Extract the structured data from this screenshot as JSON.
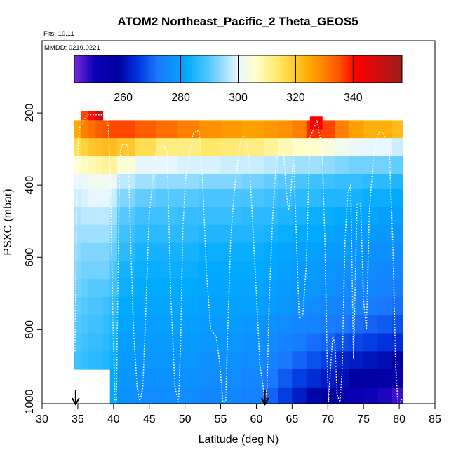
{
  "chart_data": {
    "type": "heatmap",
    "title": "ATOM2 Northeast_Pacific_2 Theta_GEOS5",
    "annotations": [
      "Flts: 10,11",
      "MMDD: 0219,0221"
    ],
    "xlabel": "Latitude (deg N)",
    "ylabel": "PSXC (mbar)",
    "xlim": [
      30,
      85
    ],
    "ylim": [
      1005,
      0
    ],
    "x_ticks": [
      "30",
      "35",
      "40",
      "45",
      "50",
      "55",
      "60",
      "65",
      "70",
      "75",
      "80",
      "85"
    ],
    "y_ticks": [
      "200",
      "400",
      "600",
      "800",
      "1000"
    ],
    "colorbar": {
      "range": [
        243,
        357
      ],
      "ticks": [
        "260",
        "280",
        "300",
        "320",
        "340"
      ],
      "tick_values": [
        260,
        280,
        300,
        320,
        340
      ],
      "stops": [
        {
          "v": 243,
          "c": "#7b2ad8"
        },
        {
          "v": 250,
          "c": "#0c00b8"
        },
        {
          "v": 258,
          "c": "#0000a0"
        },
        {
          "v": 265,
          "c": "#0033dd"
        },
        {
          "v": 272,
          "c": "#1a78ff"
        },
        {
          "v": 282,
          "c": "#00aaff"
        },
        {
          "v": 290,
          "c": "#55c8ff"
        },
        {
          "v": 300,
          "c": "#e8f7ff"
        },
        {
          "v": 306,
          "c": "#ffffcc"
        },
        {
          "v": 315,
          "c": "#ffe45a"
        },
        {
          "v": 325,
          "c": "#ffaa00"
        },
        {
          "v": 335,
          "c": "#ff5500"
        },
        {
          "v": 341,
          "c": "#ff0000"
        },
        {
          "v": 357,
          "c": "#9a1d1d"
        }
      ]
    },
    "theta_field": {
      "lat_bins": [
        [
          34.5,
          35.5
        ],
        [
          35.5,
          36.5
        ],
        [
          36.5,
          37.5
        ],
        [
          37.5,
          38.5
        ],
        [
          38.5,
          39.5
        ],
        [
          39.5,
          40.5
        ],
        [
          40.5,
          43
        ],
        [
          43,
          46
        ],
        [
          46,
          49
        ],
        [
          49,
          52
        ],
        [
          52,
          55
        ],
        [
          55,
          58
        ],
        [
          58,
          61
        ],
        [
          61,
          63
        ],
        [
          63,
          65
        ],
        [
          65,
          67
        ],
        [
          67,
          69
        ],
        [
          69,
          71
        ],
        [
          71,
          73
        ],
        [
          73,
          75
        ],
        [
          75,
          77
        ],
        [
          77,
          79
        ],
        [
          79,
          80.5
        ]
      ],
      "p_levels": [
        180,
        220,
        270,
        320,
        370,
        410,
        460,
        510,
        560,
        610,
        660,
        710,
        760,
        810,
        860,
        910,
        960,
        1005
      ],
      "theta": [
        [
          null,
          null,
          null,
          null,
          null,
          null,
          null,
          null,
          null,
          null,
          null,
          null,
          null,
          null,
          null,
          null,
          null,
          null,
          null,
          null,
          null,
          null,
          null
        ],
        [
          325,
          330,
          332,
          334,
          335,
          336,
          336,
          334,
          332,
          330,
          328,
          327,
          326,
          327,
          328,
          330,
          338,
          336,
          330,
          326,
          324,
          324,
          322
        ],
        [
          316,
          318,
          320,
          321,
          322,
          322,
          320,
          316,
          312,
          312,
          314,
          313,
          312,
          310,
          308,
          306,
          306,
          304,
          302,
          301,
          300,
          300,
          298
        ],
        [
          306,
          307,
          308,
          309,
          310,
          310,
          305,
          300,
          300,
          299,
          299,
          298,
          298,
          297,
          296,
          295,
          295,
          294,
          293,
          292,
          292,
          292,
          291
        ],
        [
          300,
          301,
          302,
          302,
          302,
          301,
          297,
          295,
          294,
          294,
          293,
          293,
          292,
          291,
          290,
          289,
          288,
          288,
          287,
          287,
          286,
          286,
          285
        ],
        [
          298,
          299,
          300,
          300,
          300,
          298,
          293,
          291,
          290,
          290,
          289,
          289,
          289,
          288,
          287,
          286,
          286,
          285,
          285,
          284,
          283,
          283,
          282
        ],
        [
          296,
          297,
          297,
          297,
          297,
          295,
          290,
          288,
          288,
          287,
          287,
          287,
          286,
          286,
          285,
          284,
          283,
          283,
          282,
          281,
          281,
          280,
          280
        ],
        [
          295,
          295,
          295,
          295,
          295,
          293,
          288,
          286,
          286,
          286,
          285,
          285,
          285,
          284,
          283,
          282,
          282,
          281,
          280,
          279,
          279,
          278,
          278
        ],
        [
          294,
          293,
          293,
          293,
          293,
          291,
          286,
          284,
          284,
          284,
          283,
          283,
          283,
          282,
          281,
          280,
          280,
          279,
          279,
          278,
          277,
          277,
          276
        ],
        [
          293,
          292,
          292,
          292,
          292,
          289,
          284,
          283,
          283,
          283,
          282,
          282,
          282,
          281,
          280,
          279,
          279,
          278,
          277,
          277,
          276,
          275,
          275
        ],
        [
          292,
          291,
          290,
          290,
          290,
          288,
          283,
          282,
          282,
          282,
          281,
          281,
          281,
          280,
          279,
          278,
          278,
          277,
          276,
          275,
          275,
          274,
          273
        ],
        [
          291,
          290,
          289,
          289,
          288,
          286,
          282,
          281,
          281,
          281,
          280,
          280,
          280,
          279,
          278,
          277,
          276,
          275,
          274,
          274,
          273,
          272,
          271
        ],
        [
          290,
          289,
          288,
          288,
          287,
          285,
          281,
          280,
          280,
          280,
          279,
          279,
          278,
          277,
          276,
          275,
          274,
          273,
          272,
          271,
          270,
          269,
          268
        ],
        [
          289,
          288,
          287,
          287,
          286,
          284,
          280,
          279,
          279,
          279,
          278,
          278,
          277,
          276,
          274,
          273,
          271,
          270,
          268,
          267,
          266,
          265,
          264
        ],
        [
          288,
          287,
          286,
          286,
          285,
          283,
          279,
          278,
          278,
          278,
          277,
          277,
          276,
          274,
          272,
          270,
          268,
          266,
          263,
          262,
          261,
          260,
          258
        ],
        [
          null,
          null,
          null,
          null,
          null,
          282,
          278,
          277,
          277,
          277,
          276,
          276,
          275,
          272,
          269,
          266,
          264,
          262,
          260,
          258,
          257,
          256,
          255
        ],
        [
          null,
          null,
          null,
          null,
          null,
          281,
          277,
          276,
          276,
          276,
          275,
          275,
          274,
          270,
          266,
          262,
          259,
          257,
          255,
          252,
          250,
          249,
          247
        ]
      ],
      "cap_patches": [
        {
          "lat": [
            35.5,
            38.5
          ],
          "p": [
            195,
            220
          ],
          "theta": [
            336,
            340,
            350
          ]
        },
        {
          "lat": [
            67.5,
            69.2
          ],
          "p": [
            210,
            245
          ],
          "theta": [
            342
          ]
        }
      ]
    },
    "flight_track": {
      "color": "#ffffff",
      "lat": [
        34.6,
        34.8,
        35.0,
        35.3,
        35.7,
        36.0,
        36.3,
        36.6,
        39.0,
        39.3,
        39.6,
        39.9,
        40.2,
        40.4,
        40.6,
        40.8,
        41.0,
        41.3,
        42.0,
        42.4,
        42.8,
        43.3,
        43.7,
        44.1,
        44.5,
        45.0,
        46.0,
        47.0,
        47.5,
        48.0,
        48.6,
        49.1,
        49.4,
        49.7,
        50.1,
        50.6,
        51.1,
        51.6,
        52.0,
        52.5,
        53.0,
        53.6,
        54.4,
        54.9,
        55.3,
        55.7,
        56.0,
        56.4,
        56.9,
        57.4,
        57.9,
        58.5,
        59.0,
        60.0,
        60.5,
        60.9,
        61.2,
        61.5,
        61.8,
        62.3,
        62.8,
        63.3,
        63.8,
        64.2,
        64.5,
        64.8,
        65.2,
        66.0,
        66.5,
        67.0,
        67.5,
        68.5,
        69.2,
        69.6,
        69.9,
        70.1,
        70.4,
        70.7,
        71.0,
        71.3,
        71.7,
        72.0,
        72.4,
        72.8,
        73.2,
        73.6,
        74.1,
        74.6,
        75.0,
        75.4,
        75.8,
        76.4,
        77.1,
        77.8,
        78.6,
        79.1,
        79.5,
        79.8,
        80.2,
        80.4
      ],
      "p": [
        860,
        520,
        300,
        235,
        230,
        215,
        205,
        205,
        205,
        240,
        420,
        760,
        1000,
        1000,
        700,
        400,
        300,
        285,
        290,
        560,
        800,
        960,
        1000,
        960,
        760,
        480,
        300,
        290,
        310,
        700,
        960,
        1000,
        840,
        520,
        380,
        320,
        260,
        250,
        250,
        400,
        640,
        800,
        820,
        900,
        1000,
        1000,
        800,
        550,
        420,
        330,
        265,
        265,
        330,
        700,
        900,
        950,
        1000,
        960,
        720,
        480,
        330,
        290,
        310,
        420,
        470,
        430,
        310,
        770,
        760,
        620,
        270,
        220,
        300,
        560,
        880,
        1000,
        900,
        820,
        840,
        980,
        1000,
        920,
        560,
        420,
        400,
        880,
        450,
        450,
        720,
        800,
        480,
        320,
        255,
        255,
        300,
        560,
        900,
        1000,
        1000,
        990
      ]
    },
    "arrow_markers": [
      34.7,
      61.2
    ]
  }
}
